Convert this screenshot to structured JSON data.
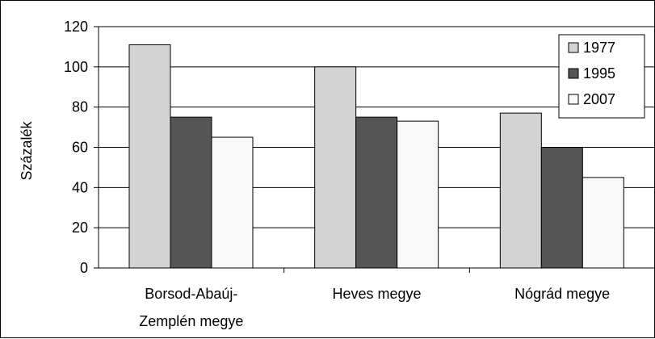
{
  "chart_data": {
    "type": "bar",
    "title": "",
    "xlabel": "",
    "ylabel": "Százalék",
    "ylim": [
      0,
      120
    ],
    "yticks": [
      0,
      20,
      40,
      60,
      80,
      100,
      120
    ],
    "ytick_labels": [
      "0",
      "20",
      "40",
      "60",
      "80",
      "100",
      "120"
    ],
    "grid": "horizontal",
    "legend_position": "top-right",
    "categories": [
      [
        "Borsod-Abaúj-",
        "Zemplén megye"
      ],
      [
        "Heves megye"
      ],
      [
        "Nógrád megye"
      ]
    ],
    "series": [
      {
        "name": "1977",
        "color": "#d3d3d3",
        "values": [
          111,
          100,
          77
        ]
      },
      {
        "name": "1995",
        "color": "#555555",
        "values": [
          75,
          75,
          60
        ]
      },
      {
        "name": "2007",
        "color": "#f8f8f8",
        "values": [
          65,
          73,
          45
        ]
      }
    ]
  }
}
